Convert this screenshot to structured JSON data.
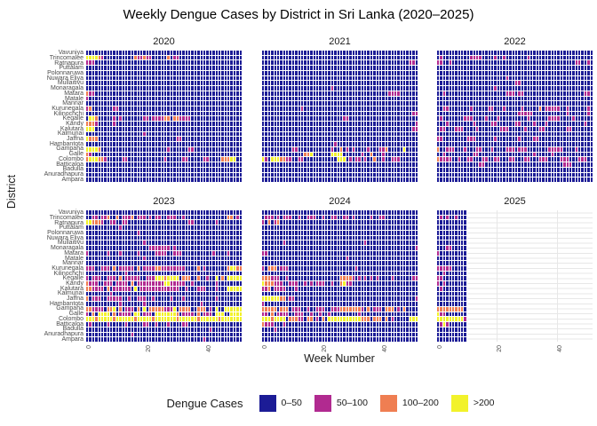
{
  "page": {
    "title": "Weekly Dengue Cases by District in Sri Lanka (2020–2025)"
  },
  "axes": {
    "x_title": "Week Number",
    "y_title": "District",
    "x_ticks": [
      {
        "label": "0",
        "week": 0
      },
      {
        "label": "20",
        "week": 20
      },
      {
        "label": "40",
        "week": 40
      }
    ]
  },
  "legend": {
    "title": "Dengue Cases",
    "items": [
      {
        "label": "0–50",
        "value": "0",
        "color": "#1c1c96"
      },
      {
        "label": "50–100",
        "value": "1",
        "color": "#b12a90"
      },
      {
        "label": "100–200",
        "value": "2",
        "color": "#ef7e52"
      },
      {
        "label": ">200",
        "value": "3",
        "color": "#f2f22b"
      }
    ]
  },
  "chart_data": {
    "type": "heatmap",
    "title": "Weekly Dengue Cases by District in Sri Lanka (2020–2025)",
    "x": "week_number",
    "x_range": [
      1,
      52
    ],
    "y": "district",
    "facet": "year",
    "grid": true,
    "gridline_color": "#e7e7e7",
    "legend_position": "bottom",
    "palette": {
      "0": "#1c1c96",
      "1": "#b12a90",
      "2": "#ef7e52",
      "3": "#f2f22b"
    },
    "value_bins": {
      "0": "0–50",
      "1": "50–100",
      "2": "100–200",
      "3": ">200",
      ".": "no data"
    },
    "y_order_top_to_bottom": [
      "Vavuniya",
      "Trincomalee",
      "Ratnapura",
      "Puttalam",
      "Polonnaruwa",
      "Nuwara Eliya",
      "Mullaitivu",
      "Monaragala",
      "Matara",
      "Matale",
      "Mannar",
      "Kurunegala",
      "Kilinochchi",
      "Kegalle",
      "Kandy",
      "Kalutara",
      "Kalmunai",
      "Jaffna",
      "Hambantota",
      "Gampaha",
      "Galle",
      "Colombo",
      "Batticaloa",
      "Badulla",
      "Anuradhapura",
      "Ampara"
    ],
    "row_note": "rows are strings of bin codes per week 1..52, top district first; short rows are padded with 'pad' char",
    "facets": [
      {
        "year": "2020",
        "pad": "0",
        "weeks_with_data": 52,
        "rows": [
          "",
          "3333210000000000211211000002011",
          "111",
          "",
          "",
          "",
          "",
          "",
          "211",
          "1",
          "",
          "12000000011",
          "",
          "03320000010100000001101111220221111",
          "2221000001",
          "333",
          "00000000000000000001",
          "32220000000000000000000000000011",
          "",
          "333320000000000000000000000100000011",
          "21",
          "23332210000011000000000000100000110000011000022233",
          "",
          "",
          "",
          ""
        ]
      },
      {
        "year": "2021",
        "pad": "0",
        "weeks_with_data": 52,
        "rows": [
          "",
          "",
          "000000000000000000000000000000000000000000000000011",
          "",
          "",
          "",
          "",
          "000000000000000000000001",
          "0000000000000000000000000000000000000000001111",
          "",
          "",
          "00000000000001",
          "0000000000000000000000000000000000000000000000000011",
          "00000000000000000000000000011",
          "0000000000000000000000000000000000000000000000000001",
          "0000000000000000000000000000000000000000000000000011",
          "",
          "",
          "0000000000000000000000001",
          "000000000011000000000001002010100001000112000003",
          "00000000000000223000000333300000010020001",
          "3103332211001100000000000333010110100200100111",
          "",
          "",
          "",
          ""
        ]
      },
      {
        "year": "2022",
        "pad": "0",
        "weeks_with_data": 52,
        "rows": [
          "",
          "0100000000011110000100100000001",
          "110010000000000000000000000000000000000000000011001",
          "",
          "",
          "000000000000000000000001",
          "0000000000000000000000000011",
          "00000000000000000001",
          "001000000000000000000001110110000000000000000000011",
          "",
          "",
          "001100000001000001100010000010000020111110010000001",
          "000000000000000000000000000111110000000000010000001",
          "0100000001110000100010000000001000000111100001",
          "00010000000010000011000000110000100010000000000001",
          "011000111000010000000111000001000011000000011",
          "",
          "1100000000111000000100000001000011",
          "",
          "20011100010001100010000111011100000001111100001",
          "001000000000110000000000000000001000001",
          "21111001001100011001100011000110001110000111000111",
          "000000000000001100000000000000000000000000111",
          "",
          "",
          ""
        ]
      },
      {
        "year": "2023",
        "pad": "0",
        "weeks_with_data": 52,
        "rows": [
          "",
          "001101120020111201110101100111001000000000000002201",
          "33222100110011000000000000000000001100000001",
          "000000000001",
          "000000000000000001",
          "",
          "00000000000000000001",
          "000000000000000000000111111101",
          "100000010001000001000001111001110000000000100001",
          "00000000000000000001",
          "",
          "1110011102011111020111122111111110000201000000023322",
          "00000000000001",
          "1011100111020111110011133323333022200200100302033333",
          "21110011101111020111111111331111100100000001",
          "2211110201111110301111111111111001000111000100033333",
          "000000001",
          "20111001111100100111001000001000100000000001",
          "000000000001000000010000000000000000001",
          "2211110223020111020302222211130222200222010300333333",
          "1020333302011110330111033333332011110201110333003333",
          "3332333332333333233333233333332333333233333323333333",
          "0100000100000100000110010001000011",
          "000000000000000000000000000000000000000001",
          "0000000000000001",
          "0000000000000000000000000000000000000001"
        ]
      },
      {
        "year": "2024",
        "pad": "0",
        "weeks_with_data": 52,
        "rows": [
          "",
          "01110101110010011100100110011010000010011",
          "102012",
          "",
          "",
          "",
          "00000001000000000000000000000000001",
          "0000000000000000000000000000000000000000000000000001",
          "11",
          "00000000000000000000000000001",
          "",
          "10222011100000000000000000000001",
          "",
          "2221110010000000000000000022221010101010000100000011",
          "322211100111001010111001002311",
          "112011110001",
          "",
          "3333332201100000000000000000000000000000000000000001",
          "1",
          "222220222011100100111001112222222102011102220102",
          "110201111001110010010010000000001",
          "3332333302221102201020333333333332220222020100000333",
          "21110001",
          "00001",
          "",
          ""
        ]
      },
      {
        "year": "2025",
        "pad": ".",
        "weeks_with_data": 10,
        "rows": [
          "0000000000",
          "0101001000",
          "0000000000",
          "0000000000",
          "0000000000",
          "0000000000",
          "0000000000",
          "0001100000",
          "1000000000",
          "0000000000",
          "0000000000",
          "1111100000",
          "0010000000",
          "1100000000",
          "1010000000",
          "0100000000",
          "0000000000",
          "0000000000",
          "0000000000",
          "2222222220",
          "3110000000",
          "3333333331",
          "0131000000",
          "0000000000",
          "0000000000",
          "0000000000"
        ]
      }
    ]
  }
}
